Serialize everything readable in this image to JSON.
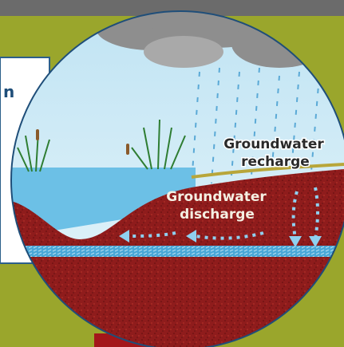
{
  "left_panel": {
    "text": "n"
  },
  "recharge_label": {
    "line1": "Groundwater",
    "line2": "recharge"
  },
  "discharge_label": {
    "line1": "Groundwater",
    "line2": "discharge"
  }
}
